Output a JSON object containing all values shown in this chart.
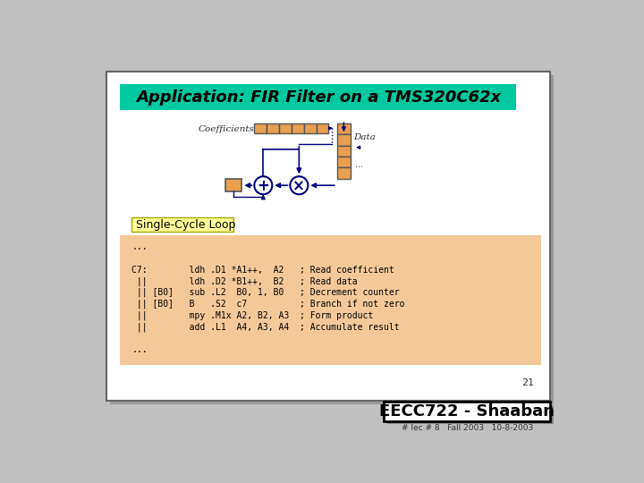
{
  "bg_outer": "#c0c0c0",
  "bg_slide": "#ffffff",
  "title_text": "Application: FIR Filter on a TMS320C62x",
  "title_bg": "#00c8a0",
  "title_color": "#000000",
  "single_cycle_text": "Single-Cycle Loop",
  "single_cycle_bg": "#ffff99",
  "code_bg": "#f5c89a",
  "code_lines": [
    "...",
    "",
    "C7:        ldh .D1 *A1++,  A2   ; Read coefficient",
    " ||        ldh .D2 *B1++,  B2   ; Read data",
    " || [B0]   sub .L2  B0, 1, B0   ; Decrement counter",
    " || [B0]   B   .S2  c7          ; Branch if not zero",
    " ||        mpy .M1x A2, B2, A3  ; Form product",
    " ||        add .L1  A4, A3, A4  ; Accumulate result",
    "",
    "..."
  ],
  "page_number": "21",
  "footer_text": "EECC722 - Shaaban",
  "footer_sub": "# lec # 8   Fall 2003   10-8-2003",
  "coeff_color": "#e8a050",
  "data_color": "#e8a050",
  "diagram_line_color": "#000080"
}
